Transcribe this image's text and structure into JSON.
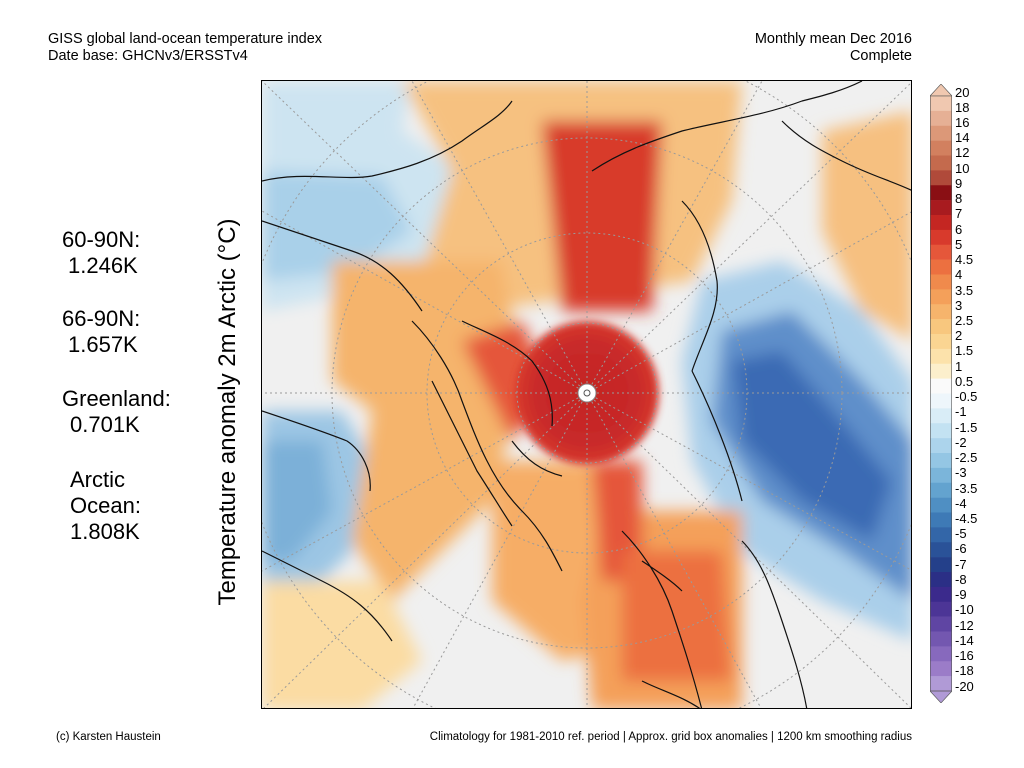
{
  "header": {
    "title": "GISS global land-ocean temperature index",
    "database": "Date base: GHCNv3/ERSSTv4",
    "period": "Monthly mean Dec 2016",
    "status": "Complete"
  },
  "axis_label": "Temperature anomaly 2m Arctic (°C)",
  "stats": [
    {
      "label": "60-90N:",
      "value": "1.246K"
    },
    {
      "label": "66-90N:",
      "value": "1.657K"
    },
    {
      "label": "Greenland:",
      "value": "0.701K"
    },
    {
      "label": "Arctic",
      "label2": "Ocean:",
      "value": "1.808K"
    }
  ],
  "colorbar": {
    "levels": [
      "20",
      "18",
      "16",
      "14",
      "12",
      "10",
      "9",
      "8",
      "7",
      "6",
      "5",
      "4.5",
      "4",
      "3.5",
      "3",
      "2.5",
      "2",
      "1.5",
      "1",
      "0.5",
      "-0.5",
      "-1",
      "-1.5",
      "-2",
      "-2.5",
      "-3",
      "-3.5",
      "-4",
      "-4.5",
      "-5",
      "-6",
      "-7",
      "-8",
      "-9",
      "-10",
      "-12",
      "-14",
      "-16",
      "-18",
      "-20"
    ],
    "colors": [
      "#f0c8b0",
      "#e6b095",
      "#dc9878",
      "#d2805f",
      "#c46a4d",
      "#b04a3a",
      "#8a0f14",
      "#a81b1f",
      "#c42622",
      "#d83a2c",
      "#e5573a",
      "#ec7040",
      "#f08a4c",
      "#f4a05a",
      "#f6b46c",
      "#f8c77e",
      "#fad592",
      "#fce2ab",
      "#fcefcc",
      "#fafafa",
      "#eef6fb",
      "#d9edf7",
      "#c3e2f2",
      "#acd4ec",
      "#94c6e4",
      "#7bb5da",
      "#63a3cf",
      "#4f8fc3",
      "#3e7ab6",
      "#3366a8",
      "#2a5298",
      "#24408a",
      "#2b2f86",
      "#3b2a8c",
      "#4c3596",
      "#5f45a3",
      "#7357b0",
      "#8769bd",
      "#9b7cc8",
      "#b09ad6"
    ]
  },
  "footer": {
    "credit": "(c) Karsten Haustein",
    "note": "Climatology for 1981-2010 ref. period | Approx. grid box anomalies | 1200 km smoothing radius"
  }
}
